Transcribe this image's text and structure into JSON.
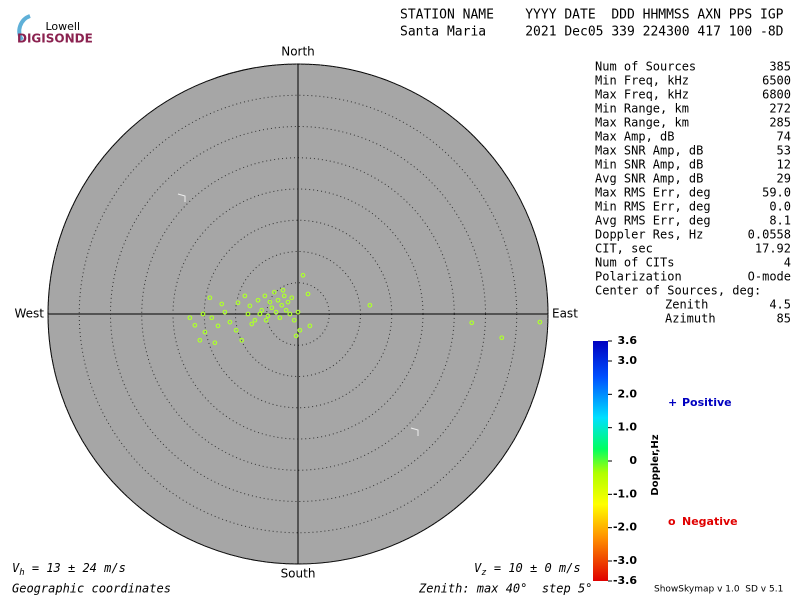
{
  "logo": {
    "top": "Lowell",
    "bottom": "DIGISONDE"
  },
  "header": {
    "line1": "STATION NAME    YYYY DATE  DDD HHMMSS AXN PPS IGP",
    "line2": "Santa Maria     2021 Dec05 339 224300 417 100 -8D"
  },
  "stats": {
    "rows": [
      [
        "Num of Sources",
        "385"
      ],
      [
        "Min Freq, kHz",
        "6500"
      ],
      [
        "Max Freq, kHz",
        "6800"
      ],
      [
        "Min Range, km",
        "272"
      ],
      [
        "Max Range, km",
        "285"
      ],
      [
        "Max Amp, dB",
        "74"
      ],
      [
        "Max SNR Amp, dB",
        "53"
      ],
      [
        "Min SNR Amp, dB",
        "12"
      ],
      [
        "Avg SNR Amp, dB",
        "29"
      ],
      [
        "Max RMS Err, deg",
        "59.0"
      ],
      [
        "Min RMS Err, deg",
        "0.0"
      ],
      [
        "Avg RMS Err, deg",
        "8.1"
      ],
      [
        "Doppler Res, Hz",
        "0.0558"
      ],
      [
        "CIT, sec",
        "17.92"
      ],
      [
        "Num of CITs",
        "4"
      ],
      [
        "Polarization",
        "O-mode"
      ]
    ],
    "center_title": "Center of Sources, deg:",
    "center_rows": [
      [
        "Zenith",
        "4.5"
      ],
      [
        "Azimuth",
        "85"
      ]
    ]
  },
  "colorbar": {
    "label": "Doppler,Hz",
    "lim": [
      -3.6,
      3.6
    ],
    "ticks": [
      3.6,
      {
        "value": 3,
        "label": "3.0"
      },
      {
        "value": 2,
        "label": "2.0"
      },
      {
        "value": 1,
        "label": "1.0"
      },
      0,
      {
        "value": -1,
        "label": "-1.0"
      },
      {
        "value": -2,
        "label": "-2.0"
      },
      {
        "value": -3,
        "label": "-3.0"
      },
      -3.6
    ]
  },
  "legend": {
    "positive": {
      "symbol": "+",
      "text": "Positive"
    },
    "negative": {
      "symbol": "o",
      "text": "Negative"
    }
  },
  "velocity": {
    "vh": {
      "symbol": "V",
      "sub": "h",
      "text": " = 13 ± 24 m/s"
    },
    "vz": {
      "symbol": "V",
      "sub": "z",
      "text": " = 10 ± 0 m/s"
    }
  },
  "footer": {
    "coords": "Geographic coordinates",
    "zenith": "Zenith: max 40°  step 5°",
    "version": "ShowSkymap v 1.0  SD v 5.1"
  },
  "chart_data": {
    "type": "scatter",
    "directions": {
      "north": "North",
      "south": "South",
      "east": "East",
      "west": "West"
    },
    "rlim": [
      0,
      40
    ],
    "rticks": [
      5,
      10,
      15,
      20,
      25,
      30,
      35,
      40
    ],
    "series": [
      {
        "color": "#adff2f",
        "x": [
          0.8,
          1.6,
          11.5,
          27.8,
          32.6,
          38.7,
          -14.1,
          -17.3,
          -16.5,
          -15.7,
          -14.9,
          -13.8,
          -12.8,
          -11.7,
          -10.9,
          -9.6,
          -9.0,
          -8.0,
          -7.7,
          -6.9,
          -6.4,
          -5.8,
          -5.3,
          -4.8,
          -4.5,
          -4.2,
          -3.8,
          -3.5,
          -3.2,
          -2.9,
          -2.6,
          -2.2,
          -1.9,
          -1.6,
          -1.3,
          -1.0,
          -0.6,
          -0.3,
          0.3,
          1.9,
          -5.1,
          -7.4,
          -9.9,
          -12.2,
          -8.5,
          -15.2,
          -13.3,
          -6.1,
          -2.4,
          0
        ],
        "values": [
          6.2,
          3.2,
          1.4,
          -1.4,
          -3.8,
          -1.3,
          2.6,
          -0.6,
          -1.8,
          -4.2,
          -2.9,
          -0.6,
          -1.9,
          0.3,
          -1.3,
          1.8,
          -4.2,
          0,
          1.3,
          -1,
          2.2,
          0.6,
          2.9,
          -0.3,
          1.9,
          1,
          3.5,
          0.3,
          2.2,
          -0.6,
          1.4,
          2.9,
          0.6,
          1.9,
          0,
          2.6,
          -1,
          -3.5,
          -2.6,
          -1.9,
          -1,
          -1.6,
          -2.6,
          1.6,
          2.9,
          0,
          -4.6,
          0,
          3.8,
          0.3
        ]
      }
    ]
  }
}
